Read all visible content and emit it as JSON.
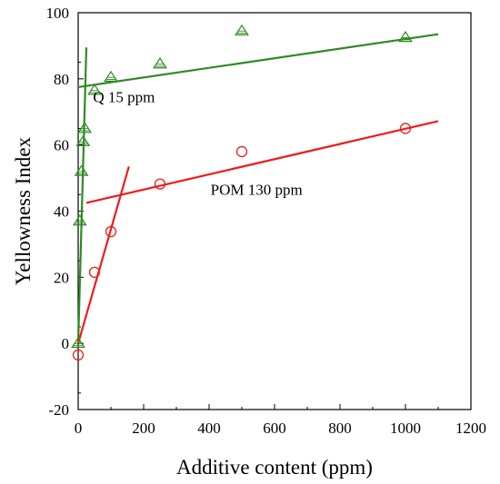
{
  "chart_data": {
    "type": "scatter",
    "title": "",
    "xlabel": "Additive content (ppm)",
    "ylabel": "Yellowness Index",
    "xlim": [
      0,
      1200
    ],
    "ylim": [
      -20,
      100
    ],
    "xticks": [
      0,
      200,
      400,
      600,
      800,
      1000,
      1200
    ],
    "yticks": [
      -20,
      0,
      20,
      40,
      60,
      80,
      100
    ],
    "grid": false,
    "legend": "none",
    "series": [
      {
        "marker": "triangle",
        "color": "#2e8b22",
        "points": [
          {
            "x": 0,
            "y": 0
          },
          {
            "x": 5,
            "y": 37
          },
          {
            "x": 10,
            "y": 52
          },
          {
            "x": 15,
            "y": 61
          },
          {
            "x": 20,
            "y": 65
          },
          {
            "x": 50,
            "y": 76.5
          },
          {
            "x": 100,
            "y": 80.5
          },
          {
            "x": 250,
            "y": 84.5
          },
          {
            "x": 500,
            "y": 94.5
          },
          {
            "x": 1000,
            "y": 92.5
          }
        ],
        "fits": [
          {
            "x": [
              0,
              25
            ],
            "y": [
              0,
              89.5
            ]
          },
          {
            "x": [
              0,
              1100
            ],
            "y": [
              77.5,
              93.5
            ]
          }
        ]
      },
      {
        "marker": "circle",
        "color": "#ee1c1c",
        "points": [
          {
            "x": 0,
            "y": -3.5
          },
          {
            "x": 50,
            "y": 21.5
          },
          {
            "x": 100,
            "y": 33.8
          },
          {
            "x": 250,
            "y": 48.2
          },
          {
            "x": 500,
            "y": 58
          },
          {
            "x": 1000,
            "y": 65
          }
        ],
        "fits": [
          {
            "x": [
              0,
              155
            ],
            "y": [
              0,
              53.5
            ]
          },
          {
            "x": [
              25,
              1100
            ],
            "y": [
              42.5,
              67.2
            ]
          }
        ]
      }
    ],
    "annotations": [
      {
        "text": "Q 15 ppm",
        "x": 140,
        "y": 73
      },
      {
        "text": "POM 130 ppm",
        "x": 545,
        "y": 45
      }
    ]
  }
}
